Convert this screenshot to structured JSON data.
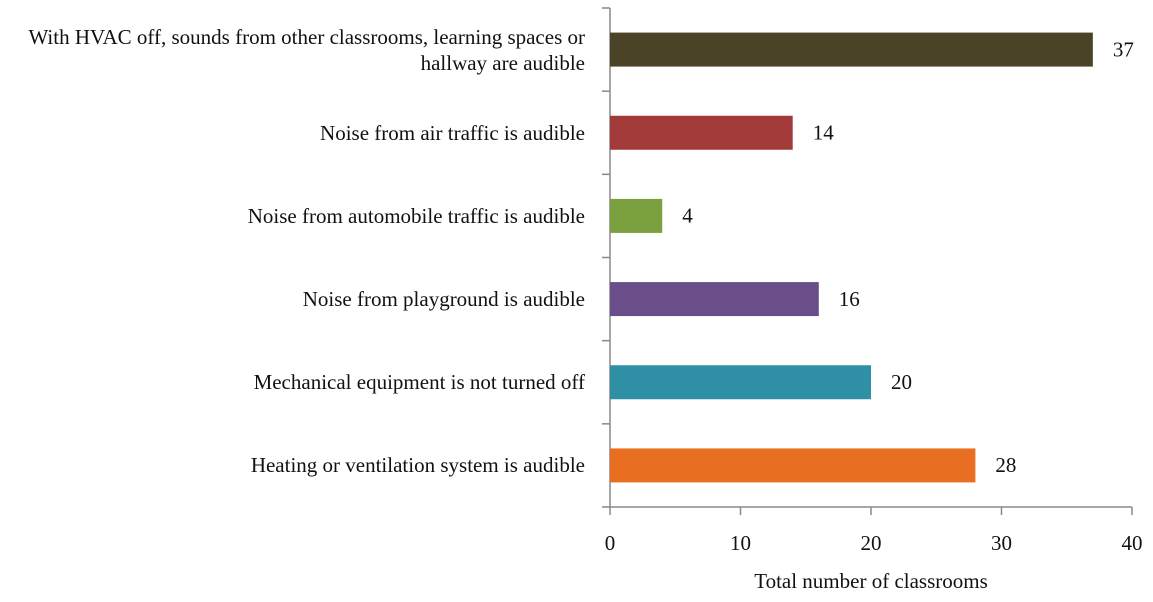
{
  "chart_data": {
    "type": "bar",
    "orientation": "horizontal",
    "x_label": "Total number of classrooms",
    "categories": [
      "With HVAC off, sounds from other classrooms, learning spaces or hallway are audible",
      "Noise from air traffic is audible",
      "Noise from automobile traffic is audible",
      "Noise from playground is audible",
      "Mechanical equipment is not turned off",
      "Heating or ventilation system is audible"
    ],
    "values": [
      37,
      14,
      4,
      16,
      20,
      28
    ],
    "colors": [
      "#4a4328",
      "#a33a3a",
      "#7aa040",
      "#6a4e8a",
      "#2e8fa5",
      "#e86e22"
    ],
    "xlim": [
      0,
      40
    ],
    "xticks": [
      0,
      10,
      20,
      30,
      40
    ],
    "grid": false
  }
}
